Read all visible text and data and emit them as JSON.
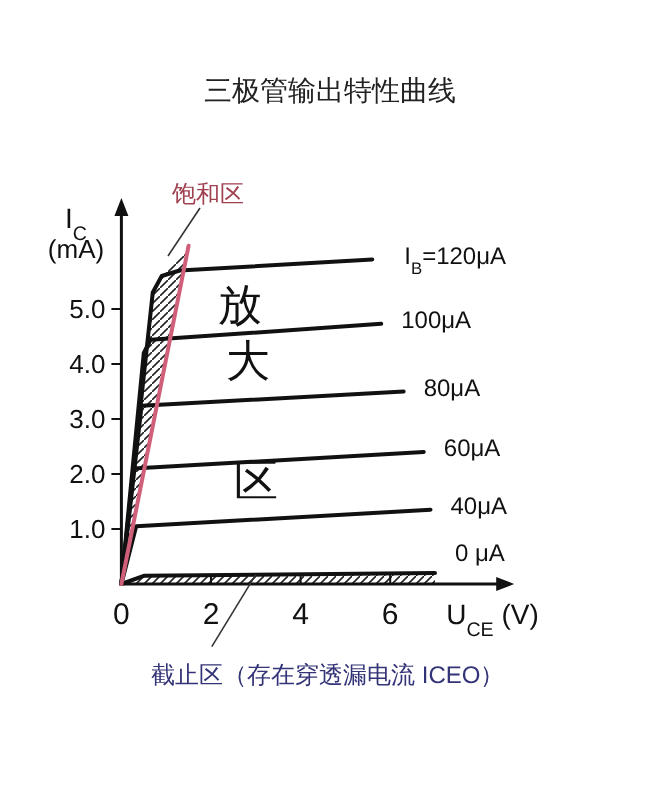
{
  "chart_data": {
    "type": "line",
    "title": "三极管输出特性曲线",
    "xlabel": "U$_{CE}$ (V)",
    "ylabel": "I$_{C}$ (mA)",
    "xlim": [
      0,
      8.5
    ],
    "ylim": [
      0,
      6.8
    ],
    "xticks": [
      0,
      2,
      4,
      6
    ],
    "yticks": [
      {
        "value": 1,
        "label": "1.0"
      },
      {
        "value": 2,
        "label": "2.0"
      },
      {
        "value": 3,
        "label": "3.0"
      },
      {
        "value": 4,
        "label": "4.0"
      },
      {
        "value": 5,
        "label": "5.0"
      }
    ],
    "grid": false,
    "marker": "none",
    "line_style": "solid",
    "series": [
      {
        "name": "I$_{B}$=120μA",
        "color": "#111111",
        "x": [
          0,
          0.7,
          0.9,
          1.3,
          5.6
        ],
        "values": [
          0,
          5.3,
          5.6,
          5.7,
          5.9
        ]
      },
      {
        "name": "100μA",
        "color": "#111111",
        "x": [
          0,
          0.5,
          0.65,
          5.8
        ],
        "values": [
          0,
          4.2,
          4.44,
          4.73
        ]
      },
      {
        "name": "80μA",
        "color": "#111111",
        "x": [
          0,
          0.45,
          6.3
        ],
        "values": [
          0,
          3.24,
          3.5
        ]
      },
      {
        "name": "60μA",
        "color": "#111111",
        "x": [
          0,
          0.27,
          6.75
        ],
        "values": [
          0,
          2.1,
          2.4
        ]
      },
      {
        "name": "40μA",
        "color": "#111111",
        "x": [
          0,
          0.33,
          6.9
        ],
        "values": [
          0,
          1.05,
          1.35
        ]
      },
      {
        "name": "0 μA",
        "color": "#111111",
        "x": [
          0,
          0.5,
          7.0
        ],
        "values": [
          0,
          0.15,
          0.2
        ]
      },
      {
        "color": "#d0607a",
        "x": [
          0,
          1.5
        ],
        "values": [
          0,
          6.15
        ]
      }
    ],
    "annotations": [
      "饱和区",
      "放",
      "大",
      "区",
      {
        "text": "截止区（存在穿透漏电流 ICEO）",
        "x": 3.0,
        "y": 0.17
      }
    ]
  }
}
